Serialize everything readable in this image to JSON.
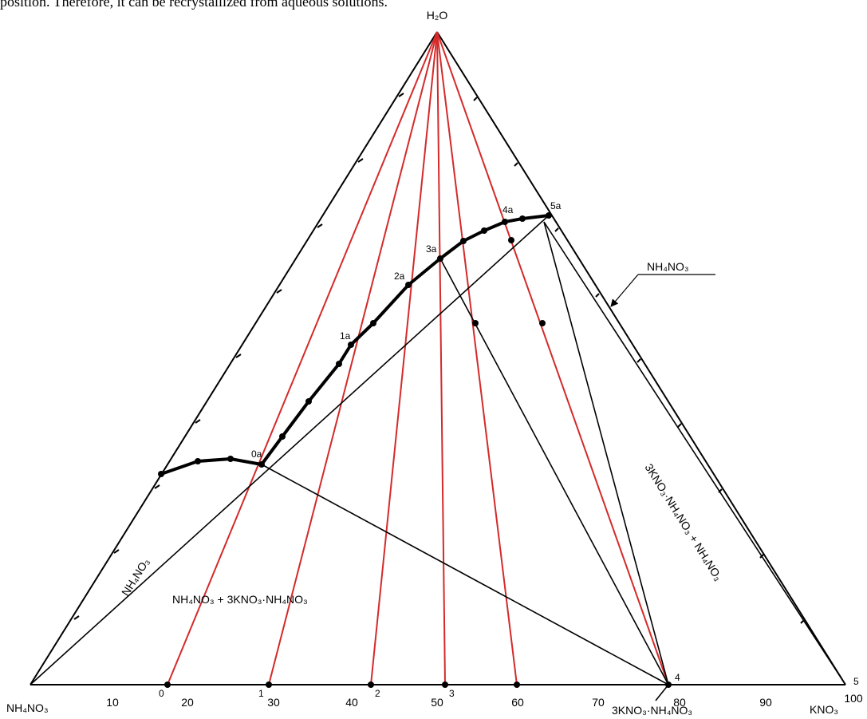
{
  "intro_text": "position. Therefore, it can be recrystallized from aqueous solutions.",
  "vertices": {
    "top": "H₂O",
    "left": "NH₄NO₃",
    "right": "KNO₃"
  },
  "axis_ticks": [
    "10",
    "20",
    "30",
    "40",
    "50",
    "60",
    "70",
    "80",
    "90",
    "100"
  ],
  "bottom_points": [
    "0",
    "1",
    "2",
    "3",
    "4",
    "5"
  ],
  "curve_points": [
    "0a",
    "1a",
    "2a",
    "3a",
    "4a",
    "5a"
  ],
  "compound_label": "3KNO₃·NH₄NO₃",
  "regions": {
    "left_field": "NH₄NO₃",
    "lower_field": "NH₄NO₃ + 3KNO₃·NH₄NO₃",
    "right_field": "3KNO₃·NH₄NO₃ + NH₄NO₃",
    "right_callout": "NH₄NO₃"
  },
  "colors": {
    "lines": "#000000",
    "section_rays": "#d42a2a"
  }
}
